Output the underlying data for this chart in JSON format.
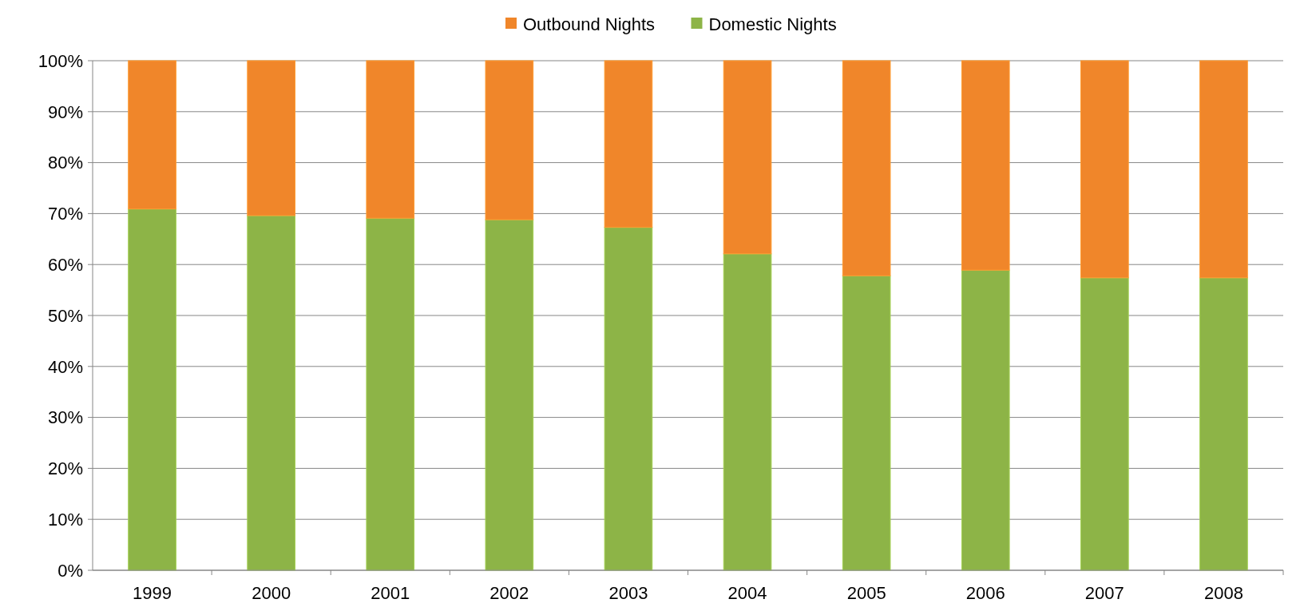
{
  "chart_data": {
    "type": "bar",
    "stacked": true,
    "categories": [
      "1999",
      "2000",
      "2001",
      "2002",
      "2003",
      "2004",
      "2005",
      "2006",
      "2007",
      "2008"
    ],
    "series": [
      {
        "name": "Domestic Nights",
        "color": "#8db447",
        "values": [
          70.9,
          69.6,
          69.1,
          68.8,
          67.3,
          62.1,
          57.8,
          58.9,
          57.4,
          57.4
        ]
      },
      {
        "name": "Outbound Nights",
        "color": "#f0862a",
        "values": [
          29.1,
          30.4,
          30.9,
          31.2,
          32.7,
          37.9,
          42.2,
          41.1,
          42.6,
          42.6
        ]
      }
    ],
    "ylim": [
      0,
      100
    ],
    "yticks": [
      {
        "value": 0,
        "label": "0%"
      },
      {
        "value": 10,
        "label": "10%"
      },
      {
        "value": 20,
        "label": "20%"
      },
      {
        "value": 30,
        "label": "30%"
      },
      {
        "value": 40,
        "label": "40%"
      },
      {
        "value": 50,
        "label": "50%"
      },
      {
        "value": 60,
        "label": "60%"
      },
      {
        "value": 70,
        "label": "70%"
      },
      {
        "value": 80,
        "label": "80%"
      },
      {
        "value": 90,
        "label": "90%"
      },
      {
        "value": 100,
        "label": "100%"
      }
    ],
    "grid": "y",
    "legend": "top"
  }
}
